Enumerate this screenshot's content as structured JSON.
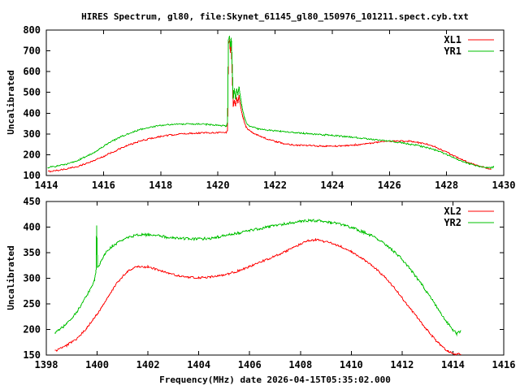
{
  "figure": {
    "title": "HIRES Spectrum, gl80, file:Skynet_61145_gl80_150976_101211.spect.cyb.txt",
    "xlabel": "Frequency(MHz) date 2026-04-15T05:35:02.000",
    "background_color": "#ffffff",
    "text_color": "#000000",
    "border_color": "#000000"
  },
  "chart_data": [
    {
      "type": "line",
      "title": "",
      "xlabel": "",
      "ylabel": "Uncalibrated",
      "xlim": [
        1414,
        1430
      ],
      "ylim": [
        100,
        800
      ],
      "xticks": [
        1414,
        1416,
        1418,
        1420,
        1422,
        1424,
        1426,
        1428,
        1430
      ],
      "yticks": [
        100,
        200,
        300,
        400,
        500,
        600,
        700,
        800
      ],
      "grid": false,
      "legend_position": "top-right",
      "series": [
        {
          "name": "XL1",
          "color": "#ff0000",
          "noise": 3.5,
          "points": [
            [
              1414.05,
              119
            ],
            [
              1414.4,
              125
            ],
            [
              1414.8,
              134
            ],
            [
              1415.2,
              148
            ],
            [
              1415.6,
              168
            ],
            [
              1416.0,
              192
            ],
            [
              1416.4,
              218
            ],
            [
              1416.8,
              242
            ],
            [
              1417.2,
              262
            ],
            [
              1417.6,
              277
            ],
            [
              1418.0,
              288
            ],
            [
              1418.4,
              296
            ],
            [
              1418.8,
              301
            ],
            [
              1419.2,
              304
            ],
            [
              1419.6,
              306
            ],
            [
              1420.0,
              307
            ],
            [
              1420.3,
              307
            ],
            [
              1420.34,
              318
            ],
            [
              1420.37,
              735
            ],
            [
              1420.41,
              752
            ],
            [
              1420.44,
              690
            ],
            [
              1420.47,
              740
            ],
            [
              1420.5,
              600
            ],
            [
              1420.54,
              430
            ],
            [
              1420.58,
              465
            ],
            [
              1420.62,
              432
            ],
            [
              1420.66,
              475
            ],
            [
              1420.7,
              450
            ],
            [
              1420.74,
              485
            ],
            [
              1420.78,
              445
            ],
            [
              1420.82,
              415
            ],
            [
              1420.87,
              385
            ],
            [
              1420.92,
              358
            ],
            [
              1421.0,
              330
            ],
            [
              1421.2,
              308
            ],
            [
              1421.5,
              288
            ],
            [
              1421.8,
              272
            ],
            [
              1422.1,
              260
            ],
            [
              1422.4,
              251
            ],
            [
              1422.8,
              246
            ],
            [
              1423.3,
              243
            ],
            [
              1423.8,
              241
            ],
            [
              1424.3,
              242
            ],
            [
              1424.8,
              247
            ],
            [
              1425.2,
              253
            ],
            [
              1425.6,
              260
            ],
            [
              1426.0,
              265
            ],
            [
              1426.3,
              267
            ],
            [
              1426.7,
              265
            ],
            [
              1427.0,
              259
            ],
            [
              1427.3,
              250
            ],
            [
              1427.6,
              237
            ],
            [
              1428.0,
              212
            ],
            [
              1428.4,
              185
            ],
            [
              1428.8,
              160
            ],
            [
              1429.1,
              147
            ],
            [
              1429.4,
              136
            ],
            [
              1429.55,
              131
            ]
          ]
        },
        {
          "name": "YR1",
          "color": "#00c000",
          "noise": 3.5,
          "points": [
            [
              1414.05,
              138
            ],
            [
              1414.4,
              146
            ],
            [
              1414.8,
              158
            ],
            [
              1415.2,
              178
            ],
            [
              1415.6,
              206
            ],
            [
              1416.0,
              240
            ],
            [
              1416.4,
              272
            ],
            [
              1416.8,
              298
            ],
            [
              1417.2,
              318
            ],
            [
              1417.6,
              332
            ],
            [
              1418.0,
              341
            ],
            [
              1418.4,
              346
            ],
            [
              1418.8,
              348
            ],
            [
              1419.2,
              348
            ],
            [
              1419.6,
              346
            ],
            [
              1420.0,
              342
            ],
            [
              1420.3,
              337
            ],
            [
              1420.34,
              360
            ],
            [
              1420.37,
              755
            ],
            [
              1420.41,
              770
            ],
            [
              1420.44,
              715
            ],
            [
              1420.47,
              762
            ],
            [
              1420.5,
              645
            ],
            [
              1420.54,
              468
            ],
            [
              1420.58,
              518
            ],
            [
              1420.62,
              462
            ],
            [
              1420.66,
              520
            ],
            [
              1420.7,
              488
            ],
            [
              1420.74,
              528
            ],
            [
              1420.78,
              487
            ],
            [
              1420.82,
              450
            ],
            [
              1420.87,
              415
            ],
            [
              1420.92,
              382
            ],
            [
              1421.0,
              352
            ],
            [
              1421.1,
              338
            ],
            [
              1421.4,
              325
            ],
            [
              1421.8,
              318
            ],
            [
              1422.2,
              312
            ],
            [
              1422.6,
              307
            ],
            [
              1423.0,
              303
            ],
            [
              1423.5,
              298
            ],
            [
              1424.0,
              293
            ],
            [
              1424.5,
              287
            ],
            [
              1425.0,
              280
            ],
            [
              1425.4,
              274
            ],
            [
              1425.9,
              267
            ],
            [
              1426.4,
              258
            ],
            [
              1426.9,
              247
            ],
            [
              1427.3,
              235
            ],
            [
              1427.7,
              219
            ],
            [
              1428.0,
              201
            ],
            [
              1428.4,
              176
            ],
            [
              1428.8,
              156
            ],
            [
              1429.1,
              145
            ],
            [
              1429.4,
              138
            ],
            [
              1429.55,
              137
            ],
            [
              1429.65,
              142
            ]
          ]
        }
      ]
    },
    {
      "type": "line",
      "title": "",
      "xlabel": "Frequency(MHz) date 2026-04-15T05:35:02.000",
      "ylabel": "Uncalibrated",
      "xlim": [
        1398,
        1416
      ],
      "ylim": [
        150,
        450
      ],
      "xticks": [
        1398,
        1400,
        1402,
        1404,
        1406,
        1408,
        1410,
        1412,
        1414,
        1416
      ],
      "yticks": [
        150,
        200,
        250,
        300,
        350,
        400,
        450
      ],
      "grid": false,
      "legend_position": "top-right",
      "series": [
        {
          "name": "XL2",
          "color": "#ff0000",
          "noise": 2.0,
          "points": [
            [
              1398.35,
              158
            ],
            [
              1398.8,
              169
            ],
            [
              1399.2,
              182
            ],
            [
              1399.6,
              203
            ],
            [
              1400.0,
              230
            ],
            [
              1400.4,
              262
            ],
            [
              1400.8,
              292
            ],
            [
              1401.2,
              314
            ],
            [
              1401.6,
              323
            ],
            [
              1402.0,
              322
            ],
            [
              1402.4,
              316
            ],
            [
              1402.8,
              310
            ],
            [
              1403.2,
              305
            ],
            [
              1403.6,
              302
            ],
            [
              1404.0,
              301
            ],
            [
              1404.4,
              302
            ],
            [
              1404.8,
              305
            ],
            [
              1405.2,
              309
            ],
            [
              1405.6,
              315
            ],
            [
              1406.0,
              323
            ],
            [
              1406.4,
              331
            ],
            [
              1406.8,
              339
            ],
            [
              1407.2,
              347
            ],
            [
              1407.6,
              357
            ],
            [
              1408.0,
              367
            ],
            [
              1408.3,
              373
            ],
            [
              1408.6,
              375
            ],
            [
              1408.9,
              373
            ],
            [
              1409.2,
              369
            ],
            [
              1409.6,
              362
            ],
            [
              1410.0,
              352
            ],
            [
              1410.4,
              340
            ],
            [
              1410.8,
              326
            ],
            [
              1411.2,
              308
            ],
            [
              1411.6,
              287
            ],
            [
              1412.0,
              262
            ],
            [
              1412.4,
              236
            ],
            [
              1412.8,
              210
            ],
            [
              1413.2,
              186
            ],
            [
              1413.5,
              170
            ],
            [
              1413.8,
              157
            ],
            [
              1414.1,
              152
            ],
            [
              1414.3,
              152
            ]
          ]
        },
        {
          "name": "YR2",
          "color": "#00c000",
          "noise": 2.6,
          "points": [
            [
              1398.35,
              192
            ],
            [
              1398.8,
              211
            ],
            [
              1399.2,
              234
            ],
            [
              1399.6,
              266
            ],
            [
              1399.9,
              297
            ],
            [
              1399.96,
              315
            ],
            [
              1399.98,
              405
            ],
            [
              1400.02,
              320
            ],
            [
              1400.3,
              348
            ],
            [
              1400.6,
              363
            ],
            [
              1400.9,
              372
            ],
            [
              1401.2,
              380
            ],
            [
              1401.6,
              385
            ],
            [
              1402.0,
              385
            ],
            [
              1402.4,
              383
            ],
            [
              1402.8,
              380
            ],
            [
              1403.2,
              378
            ],
            [
              1403.6,
              377
            ],
            [
              1404.0,
              377
            ],
            [
              1404.4,
              378
            ],
            [
              1404.8,
              381
            ],
            [
              1405.2,
              385
            ],
            [
              1405.6,
              389
            ],
            [
              1406.0,
              393
            ],
            [
              1406.4,
              397
            ],
            [
              1406.8,
              401
            ],
            [
              1407.2,
              405
            ],
            [
              1407.6,
              408
            ],
            [
              1408.0,
              411
            ],
            [
              1408.4,
              413
            ],
            [
              1408.8,
              412
            ],
            [
              1409.2,
              409
            ],
            [
              1409.6,
              405
            ],
            [
              1410.0,
              399
            ],
            [
              1410.4,
              392
            ],
            [
              1410.8,
              383
            ],
            [
              1411.2,
              371
            ],
            [
              1411.6,
              356
            ],
            [
              1412.0,
              337
            ],
            [
              1412.4,
              313
            ],
            [
              1412.8,
              286
            ],
            [
              1413.2,
              257
            ],
            [
              1413.5,
              233
            ],
            [
              1413.8,
              212
            ],
            [
              1414.0,
              199
            ],
            [
              1414.15,
              192
            ],
            [
              1414.3,
              197
            ]
          ]
        }
      ]
    }
  ]
}
